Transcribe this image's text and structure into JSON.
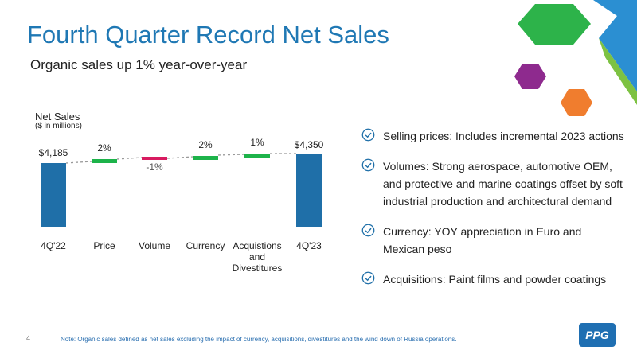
{
  "title": "Fourth Quarter Record Net Sales",
  "subtitle": "Organic sales up 1% year-over-year",
  "chart_data": {
    "type": "bar",
    "label": "Net Sales",
    "unit": "($ in millions)",
    "categories": [
      "4Q'22",
      "Price",
      "Volume",
      "Currency",
      "Acquistions and Divestitures",
      "4Q'23"
    ],
    "category_lines": [
      [
        "4Q'22"
      ],
      [
        "Price"
      ],
      [
        "Volume"
      ],
      [
        "Currency"
      ],
      [
        "Acquistions",
        "and",
        "Divestitures"
      ],
      [
        "4Q'23"
      ]
    ],
    "data_labels": [
      "$4,185",
      "2%",
      "-1%",
      "2%",
      "1%",
      "$4,350"
    ],
    "values": [
      4185,
      2,
      -1,
      2,
      1,
      4350
    ],
    "kinds": [
      "total",
      "change",
      "change",
      "change",
      "change",
      "total"
    ],
    "colors": {
      "total": "#1f6fa8",
      "increase": "#1db34a",
      "decrease": "#d81b60",
      "connector": "#999999"
    }
  },
  "bullets": [
    {
      "lines": [
        "Selling prices: Includes incremental 2023 actions"
      ]
    },
    {
      "lines": [
        "Volumes: Strong aerospace, automotive OEM,",
        "and protective and marine coatings offset by soft",
        "industrial production and architectural demand"
      ]
    },
    {
      "lines": [
        "Currency: YOY appreciation in Euro and",
        "Mexican peso"
      ]
    },
    {
      "lines": [
        "Acquisitions: Paint films and powder coatings"
      ]
    }
  ],
  "page_number": "4",
  "note": "Note: Organic sales defined as net sales excluding the impact of currency, acquisitions, divestitures and the wind down of Russia operations.",
  "logo_text": "PPG",
  "colors": {
    "title": "#1f78b4",
    "check": "#1f6fa8",
    "deco_green": "#2db34a",
    "deco_purple": "#8e2a8e",
    "deco_orange": "#f07d2e",
    "deco_blue": "#1f7fc1"
  }
}
